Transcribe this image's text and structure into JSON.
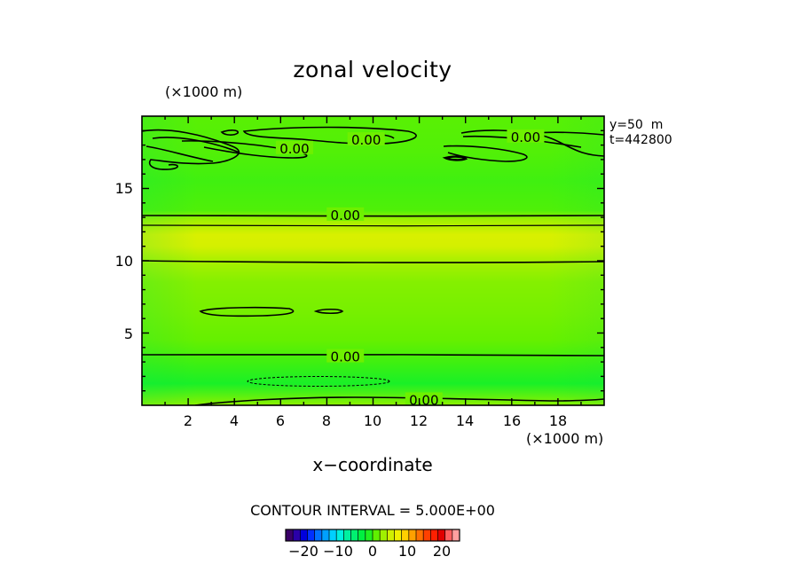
{
  "chart_data": {
    "type": "heatmap",
    "title": "zonal velocity",
    "xlabel": "x−coordinate",
    "x_unit": "(×1000 m)",
    "y_unit": "(×1000 m)",
    "xlim": [
      0,
      20
    ],
    "ylim": [
      0,
      20
    ],
    "x_ticks": [
      "2",
      "4",
      "6",
      "8",
      "10",
      "12",
      "14",
      "16",
      "18"
    ],
    "y_ticks": [
      "5",
      "10",
      "15"
    ],
    "annotations": [
      "y=50  m",
      "t=442800"
    ],
    "contour_interval": "CONTOUR INTERVAL = 5.000E+00",
    "contour_labels": [
      {
        "text": "0.00",
        "x": 9.7,
        "y": 18.4
      },
      {
        "text": "0.00",
        "x": 6.6,
        "y": 17.8
      },
      {
        "text": "0.00",
        "x": 16.6,
        "y": 18.6
      },
      {
        "text": "0.00",
        "x": 8.8,
        "y": 13.2
      },
      {
        "text": "0.00",
        "x": 8.8,
        "y": 3.4
      },
      {
        "text": "0.00",
        "x": 12.2,
        "y": 0.4
      }
    ],
    "colorbar": {
      "ticks": [
        "−20",
        "−10",
        "0",
        "10",
        "20"
      ],
      "tick_values": [
        -20,
        -10,
        0,
        10,
        20
      ],
      "range": [
        -25,
        25
      ],
      "colors": [
        "#3a0068",
        "#2a00a8",
        "#0000dd",
        "#0030ff",
        "#0070ff",
        "#00a0ff",
        "#00d0ff",
        "#00f0e0",
        "#00f0a0",
        "#00f070",
        "#00f040",
        "#20f020",
        "#60f000",
        "#a0f000",
        "#d0f000",
        "#f0f000",
        "#ffd000",
        "#ffa000",
        "#ff7000",
        "#ff4000",
        "#ff2000",
        "#e00000",
        "#ff6060",
        "#ffa0a0"
      ]
    },
    "field_profile_vs_y": [
      {
        "y": 0.0,
        "value": 2.5
      },
      {
        "y": 1.5,
        "value": -1.5
      },
      {
        "y": 3.0,
        "value": 0.0
      },
      {
        "y": 4.5,
        "value": 1.2
      },
      {
        "y": 6.5,
        "value": 1.8
      },
      {
        "y": 8.5,
        "value": 2.2
      },
      {
        "y": 10.0,
        "value": 3.5
      },
      {
        "y": 11.0,
        "value": 5.5
      },
      {
        "y": 11.8,
        "value": 5.8
      },
      {
        "y": 12.8,
        "value": 3.2
      },
      {
        "y": 13.5,
        "value": 0.5
      },
      {
        "y": 15.5,
        "value": 0.0
      },
      {
        "y": 17.5,
        "value": 0.6
      },
      {
        "y": 20.0,
        "value": 0.8
      }
    ],
    "colors": {
      "base": "#22f022",
      "yellow_band": "#e6f500",
      "teal_band": "#00f07a"
    }
  }
}
